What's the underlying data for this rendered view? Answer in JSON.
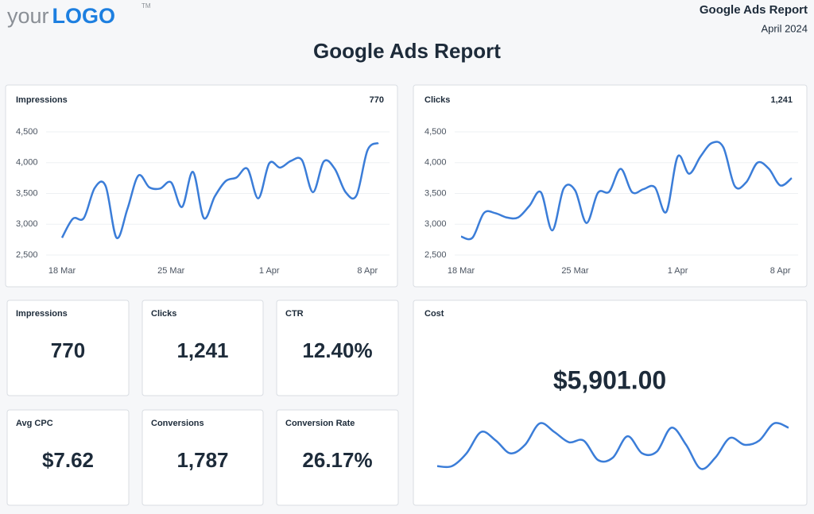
{
  "header": {
    "logo_prefix": "your",
    "logo_main": "LOGO",
    "trademark": "TM",
    "report_name": "Google Ads Report",
    "period": "April 2024"
  },
  "title": "Google Ads Report",
  "chart_data": [
    {
      "type": "line",
      "title": "Impressions",
      "total": "770",
      "color": "#3b7dd8",
      "categories": [
        "18 Mar",
        null,
        null,
        null,
        null,
        null,
        null,
        null,
        null,
        null,
        "25 Mar",
        null,
        null,
        null,
        null,
        null,
        null,
        null,
        null,
        "1 Apr",
        null,
        null,
        null,
        null,
        null,
        null,
        null,
        null,
        "8 Apr",
        null
      ],
      "values": [
        2780,
        3090,
        3100,
        3590,
        3620,
        2780,
        3250,
        3790,
        3600,
        3580,
        3680,
        3280,
        3850,
        3100,
        3450,
        3700,
        3760,
        3900,
        3420,
        3990,
        3920,
        4030,
        4040,
        3520,
        4020,
        3900,
        3520,
        3470,
        4200,
        4320
      ],
      "ylim": [
        2500,
        4500
      ],
      "yticks": [
        {
          "value": 2500,
          "label": "2,500"
        },
        {
          "value": 3000,
          "label": "3,000"
        },
        {
          "value": 3500,
          "label": "3,500"
        },
        {
          "value": 4000,
          "label": "4,000"
        },
        {
          "value": 4500,
          "label": "4,500"
        }
      ],
      "grid": true
    },
    {
      "type": "line",
      "title": "Clicks",
      "total": "1,241",
      "color": "#3b7dd8",
      "categories": [
        "18 Mar",
        null,
        null,
        null,
        null,
        null,
        null,
        null,
        null,
        null,
        "25 Mar",
        null,
        null,
        null,
        null,
        null,
        null,
        null,
        null,
        "1 Apr",
        null,
        null,
        null,
        null,
        null,
        null,
        null,
        null,
        "8 Apr",
        null
      ],
      "values": [
        2800,
        2780,
        3180,
        3180,
        3110,
        3110,
        3300,
        3520,
        2900,
        3580,
        3550,
        3020,
        3510,
        3530,
        3900,
        3520,
        3570,
        3600,
        3200,
        4100,
        3820,
        4100,
        4320,
        4250,
        3620,
        3680,
        4000,
        3900,
        3630,
        3750
      ],
      "ylim": [
        2500,
        4500
      ],
      "yticks": [
        {
          "value": 2500,
          "label": "2,500"
        },
        {
          "value": 3000,
          "label": "3,000"
        },
        {
          "value": 3500,
          "label": "3,500"
        },
        {
          "value": 4000,
          "label": "4,000"
        },
        {
          "value": 4500,
          "label": "4,500"
        }
      ],
      "grid": true
    },
    {
      "type": "sparkline",
      "title": "Cost",
      "total": "$5,901.00",
      "color": "#3b7dd8",
      "values": [
        15,
        15,
        30,
        55,
        45,
        30,
        40,
        65,
        55,
        43,
        45,
        22,
        25,
        50,
        30,
        32,
        60,
        40,
        12,
        25,
        48,
        40,
        45,
        65,
        60
      ]
    }
  ],
  "kpis": [
    {
      "label": "Impressions",
      "value": "770"
    },
    {
      "label": "Clicks",
      "value": "1,241"
    },
    {
      "label": "CTR",
      "value": "12.40%"
    },
    {
      "label": "Avg CPC",
      "value": "$7.62"
    },
    {
      "label": "Conversions",
      "value": "1,787"
    },
    {
      "label": "Conversion Rate",
      "value": "26.17%"
    }
  ]
}
